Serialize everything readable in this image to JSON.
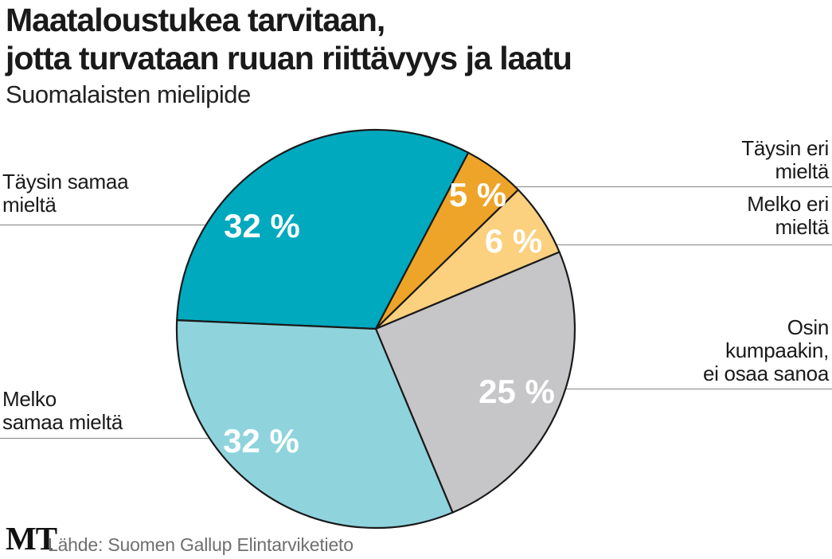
{
  "header": {
    "title_line1": "Maataloustukea tarvitaan,",
    "title_line2": "jotta turvataan ruuan riittävyys ja laatu",
    "subtitle": "Suomalaisten mielipide"
  },
  "chart_data": {
    "type": "pie",
    "title": "Maataloustukea tarvitaan, jotta turvataan ruuan riittävyys ja laatu",
    "subtitle": "Suomalaisten mielipide",
    "unit": "%",
    "start_angle_deg": -87.5,
    "direction": "clockwise",
    "slices": [
      {
        "label": "Täysin samaa mieltä",
        "label_lines": [
          "Täysin samaa",
          "mieltä"
        ],
        "value": 32,
        "display": "32 %",
        "color": "#00a9be",
        "side": "left"
      },
      {
        "label": "Täysin eri mieltä",
        "label_lines": [
          "Täysin eri",
          "mieltä"
        ],
        "value": 5,
        "display": "5 %",
        "color": "#eea428",
        "side": "right"
      },
      {
        "label": "Melko eri mieltä",
        "label_lines": [
          "Melko eri",
          "mieltä"
        ],
        "value": 6,
        "display": "6 %",
        "color": "#fbd07e",
        "side": "right"
      },
      {
        "label": "Osin kumpaakin, ei osaa sanoa",
        "label_lines": [
          "Osin",
          "kumpaakin,",
          "ei osaa sanoa"
        ],
        "value": 25,
        "display": "25 %",
        "color": "#c6c6c8",
        "side": "right"
      },
      {
        "label": "Melko samaa mieltä",
        "label_lines": [
          "Melko",
          "samaa mieltä"
        ],
        "value": 32,
        "display": "32 %",
        "color": "#8fd4dd",
        "side": "left"
      }
    ],
    "colors": {
      "slice_outline": "#1a1a1a",
      "leader_line": "#949494",
      "percent_text": "#ffffff"
    }
  },
  "footer": {
    "logo": "MT",
    "source": "Lähde: Suomen Gallup Elintarviketieto"
  }
}
